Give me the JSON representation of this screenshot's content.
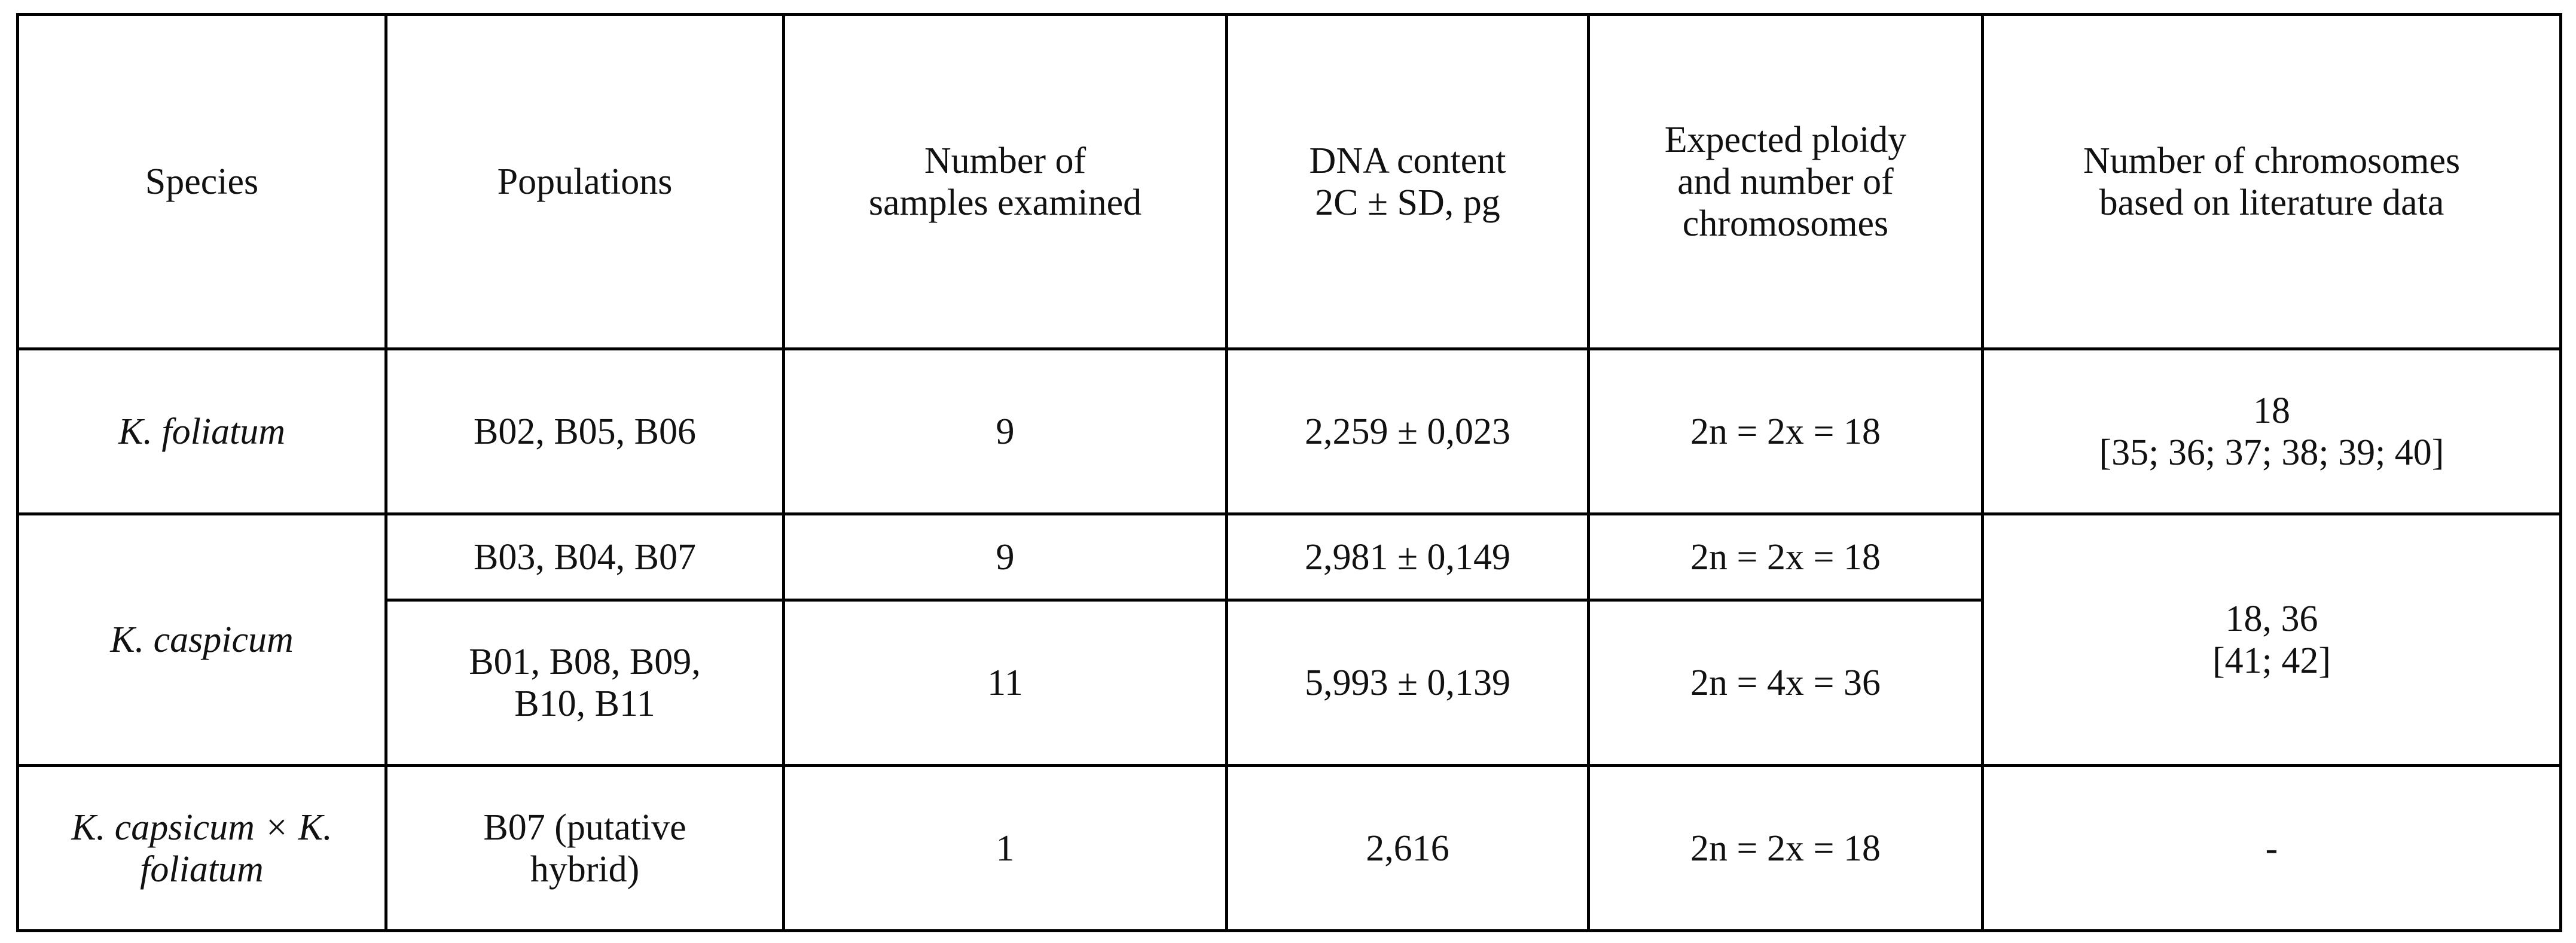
{
  "header": {
    "cells": [
      [
        "Species"
      ],
      [
        "Populations"
      ],
      [
        "Number of",
        "samples examined"
      ],
      [
        "DNA content",
        "2C ± SD, pg"
      ],
      [
        "Expected ploidy",
        "and number of",
        "chromosomes"
      ],
      [
        "Number of chromosomes",
        "based on literature data"
      ]
    ]
  },
  "rows": [
    [
      [
        "K. foliatum"
      ],
      [
        "B02, B05, B06"
      ],
      [
        "9"
      ],
      [
        "2,259 ± 0,023"
      ],
      [
        "2n = 2x = 18"
      ],
      [
        "18",
        "[35; 36; 37; 38; 39; 40]"
      ]
    ],
    [
      [
        "K. caspicum"
      ],
      [
        "B03, B04, B07"
      ],
      [
        "9"
      ],
      [
        "2,981 ± 0,149"
      ],
      [
        "2n = 2x = 18"
      ],
      [
        "18, 36",
        "[41; 42]"
      ]
    ],
    [
      [
        "B01, B08, B09,",
        "B10, B11"
      ],
      [
        "11"
      ],
      [
        "5,993 ± 0,139"
      ],
      [
        "2n = 4x = 36"
      ]
    ],
    [
      [
        "K. capsicum × K.",
        "foliatum"
      ],
      [
        "B07 (putative",
        "hybrid)"
      ],
      [
        "1"
      ],
      [
        "2,616"
      ],
      [
        "2n = 2x = 18"
      ],
      [
        "-"
      ]
    ]
  ]
}
